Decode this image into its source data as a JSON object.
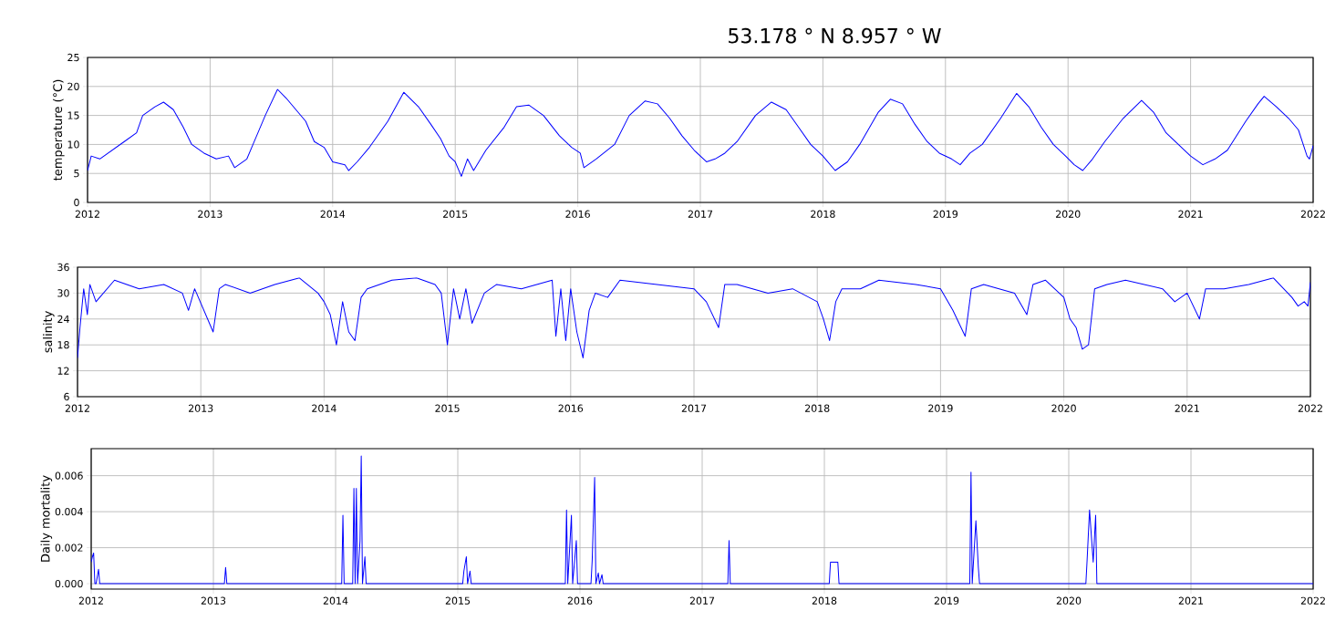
{
  "chart_data": [
    {
      "type": "line",
      "title": "53.178 ° N 8.957 ° W",
      "ylabel": "temperature (°C)",
      "color": "#0000ff",
      "grid": true,
      "xlim": [
        2012,
        2022
      ],
      "xticks": [
        2012,
        2013,
        2014,
        2015,
        2016,
        2017,
        2018,
        2019,
        2020,
        2021,
        2022
      ],
      "ylim": [
        0,
        25
      ],
      "yticks": [
        0,
        5,
        10,
        15,
        20,
        25
      ],
      "x": [
        2012.0,
        2012.03,
        2012.1,
        2012.2,
        2012.3,
        2012.4,
        2012.45,
        2012.55,
        2012.62,
        2012.7,
        2012.78,
        2012.85,
        2012.95,
        2013.05,
        2013.15,
        2013.2,
        2013.3,
        2013.35,
        2013.45,
        2013.55,
        2013.62,
        2013.7,
        2013.78,
        2013.85,
        2013.93,
        2014.0,
        2014.1,
        2014.13,
        2014.2,
        2014.3,
        2014.45,
        2014.58,
        2014.7,
        2014.8,
        2014.88,
        2014.95,
        2015.0,
        2015.05,
        2015.1,
        2015.15,
        2015.25,
        2015.4,
        2015.5,
        2015.6,
        2015.72,
        2015.85,
        2015.95,
        2016.02,
        2016.05,
        2016.15,
        2016.3,
        2016.42,
        2016.55,
        2016.65,
        2016.75,
        2016.85,
        2016.95,
        2017.05,
        2017.12,
        2017.2,
        2017.3,
        2017.45,
        2017.58,
        2017.7,
        2017.8,
        2017.9,
        2018.0,
        2018.1,
        2018.2,
        2018.3,
        2018.45,
        2018.55,
        2018.65,
        2018.75,
        2018.85,
        2018.95,
        2019.05,
        2019.12,
        2019.2,
        2019.3,
        2019.45,
        2019.58,
        2019.68,
        2019.78,
        2019.88,
        2019.98,
        2020.05,
        2020.12,
        2020.2,
        2020.3,
        2020.45,
        2020.6,
        2020.7,
        2020.8,
        2020.9,
        2021.0,
        2021.1,
        2021.2,
        2021.3,
        2021.45,
        2021.55,
        2021.6,
        2021.7,
        2021.8,
        2021.88,
        2021.95,
        2021.97,
        2022.0
      ],
      "values": [
        5.5,
        8,
        7.5,
        9,
        10.5,
        12,
        15,
        16.5,
        17.3,
        16,
        13,
        10,
        8.5,
        7.5,
        8,
        6,
        7.5,
        10,
        15,
        19.5,
        18,
        16,
        14,
        10.5,
        9.5,
        7,
        6.5,
        5.5,
        7,
        9.5,
        14,
        19,
        16.5,
        13.5,
        11,
        8,
        7,
        4.5,
        7.5,
        5.5,
        9,
        13,
        16.5,
        16.8,
        15,
        11.5,
        9.5,
        8.5,
        6,
        7.5,
        10,
        15,
        17.5,
        17,
        14.5,
        11.5,
        9,
        7,
        7.5,
        8.5,
        10.5,
        15,
        17.3,
        16,
        13,
        10,
        8,
        5.5,
        7,
        10,
        15.5,
        17.8,
        17,
        13.5,
        10.5,
        8.5,
        7.5,
        6.5,
        8.5,
        10,
        14.5,
        18.8,
        16.5,
        13,
        10,
        8,
        6.5,
        5.5,
        7.5,
        10.5,
        14.5,
        17.6,
        15.5,
        12,
        10,
        8,
        6.5,
        7.5,
        9,
        14,
        17,
        18.3,
        16.5,
        14.5,
        12.5,
        8,
        7.5,
        9.8
      ]
    },
    {
      "type": "line",
      "ylabel": "salinity",
      "color": "#0000ff",
      "grid": true,
      "xlim": [
        2012,
        2022
      ],
      "xticks": [
        2012,
        2013,
        2014,
        2015,
        2016,
        2017,
        2018,
        2019,
        2020,
        2021,
        2022
      ],
      "ylim": [
        6,
        36
      ],
      "yticks": [
        6,
        12,
        18,
        24,
        30,
        36
      ],
      "x": [
        2012.0,
        2012.02,
        2012.05,
        2012.08,
        2012.1,
        2012.15,
        2012.3,
        2012.5,
        2012.7,
        2012.85,
        2012.9,
        2012.95,
        2013.1,
        2013.15,
        2013.2,
        2013.4,
        2013.6,
        2013.8,
        2013.95,
        2014.0,
        2014.05,
        2014.1,
        2014.15,
        2014.2,
        2014.25,
        2014.3,
        2014.35,
        2014.55,
        2014.75,
        2014.9,
        2014.95,
        2015.0,
        2015.05,
        2015.1,
        2015.15,
        2015.2,
        2015.3,
        2015.4,
        2015.6,
        2015.85,
        2015.88,
        2015.92,
        2015.96,
        2016.0,
        2016.05,
        2016.1,
        2016.15,
        2016.2,
        2016.3,
        2016.4,
        2016.7,
        2017.0,
        2017.1,
        2017.2,
        2017.25,
        2017.35,
        2017.6,
        2017.8,
        2018.0,
        2018.05,
        2018.1,
        2018.15,
        2018.2,
        2018.35,
        2018.5,
        2018.8,
        2019.0,
        2019.1,
        2019.2,
        2019.25,
        2019.35,
        2019.6,
        2019.7,
        2019.75,
        2019.85,
        2020.0,
        2020.05,
        2020.1,
        2020.15,
        2020.2,
        2020.25,
        2020.35,
        2020.5,
        2020.8,
        2020.9,
        2021.0,
        2021.1,
        2021.15,
        2021.3,
        2021.5,
        2021.7,
        2021.85,
        2021.9,
        2021.95,
        2021.98,
        2022.0
      ],
      "values": [
        15,
        22,
        31,
        25,
        32,
        28,
        33,
        31,
        32,
        30,
        26,
        31,
        21,
        31,
        32,
        30,
        32,
        33.5,
        30,
        28,
        25,
        18,
        28,
        21,
        19,
        29,
        31,
        33,
        33.5,
        32,
        30,
        18,
        31,
        24,
        31,
        23,
        30,
        32,
        31,
        33,
        20,
        31,
        19,
        31,
        21,
        15,
        26,
        30,
        29,
        33,
        32,
        31,
        28,
        22,
        32,
        32,
        30,
        31,
        28,
        24,
        19,
        28,
        31,
        31,
        33,
        32,
        31,
        26,
        20,
        31,
        32,
        30,
        25,
        32,
        33,
        29,
        24,
        22,
        17,
        18,
        31,
        32,
        33,
        31,
        28,
        30,
        24,
        31,
        31,
        32,
        33.5,
        29,
        27,
        28,
        27,
        32.5
      ]
    },
    {
      "type": "line",
      "ylabel": "Daily mortality",
      "color": "#0000ff",
      "grid": true,
      "xlim": [
        2012,
        2022
      ],
      "xticks": [
        2012,
        2013,
        2014,
        2015,
        2016,
        2017,
        2018,
        2019,
        2020,
        2021,
        2022
      ],
      "ylim": [
        -0.0003,
        0.0075
      ],
      "yticks": [
        {
          "value": 0,
          "label": "0.000"
        },
        {
          "value": 0.002,
          "label": "0.002"
        },
        {
          "value": 0.004,
          "label": "0.004"
        },
        {
          "value": 0.006,
          "label": "0.006"
        }
      ],
      "x": [
        2012.0,
        2012.01,
        2012.02,
        2012.03,
        2012.04,
        2012.06,
        2012.07,
        2013.09,
        2013.1,
        2013.11,
        2014.05,
        2014.06,
        2014.07,
        2014.14,
        2014.15,
        2014.16,
        2014.17,
        2014.18,
        2014.2,
        2014.21,
        2014.22,
        2014.24,
        2014.25,
        2015.04,
        2015.05,
        2015.07,
        2015.08,
        2015.1,
        2015.11,
        2015.88,
        2015.89,
        2015.9,
        2015.93,
        2015.94,
        2015.97,
        2015.98,
        2016.09,
        2016.1,
        2016.12,
        2016.13,
        2016.15,
        2016.16,
        2016.18,
        2016.19,
        2017.21,
        2017.22,
        2017.23,
        2018.04,
        2018.05,
        2018.08,
        2018.11,
        2018.12,
        2019.19,
        2019.2,
        2019.21,
        2019.24,
        2019.26,
        2019.27,
        2020.14,
        2020.15,
        2020.17,
        2020.2,
        2020.22,
        2020.23,
        2022.0
      ],
      "values": [
        0.0012,
        0.0015,
        0.0017,
        0,
        0,
        0.0008,
        0,
        0,
        0.0009,
        0,
        0,
        0.0038,
        0,
        0,
        0.0053,
        0,
        0.0053,
        0,
        0.0024,
        0.0071,
        0,
        0.0015,
        0,
        0,
        0.0007,
        0.0015,
        0,
        0.0007,
        0,
        0,
        0.0041,
        0,
        0.0038,
        0,
        0.0024,
        0,
        0,
        0.0013,
        0.0059,
        0,
        0.0006,
        0,
        0.0005,
        0,
        0,
        0.0024,
        0,
        0,
        0.0012,
        0.0012,
        0.0012,
        0,
        0,
        0.0062,
        0,
        0.0035,
        0.0009,
        0,
        0,
        0.0013,
        0.0041,
        0.0012,
        0.0038,
        0,
        0
      ]
    }
  ]
}
